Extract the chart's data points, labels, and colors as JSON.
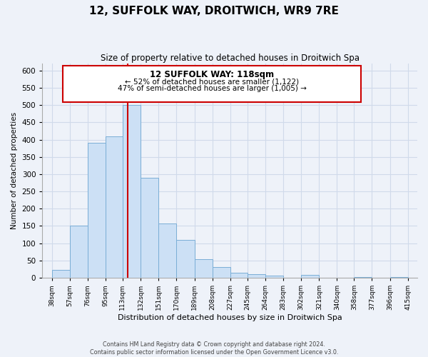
{
  "title": "12, SUFFOLK WAY, DROITWICH, WR9 7RE",
  "subtitle": "Size of property relative to detached houses in Droitwich Spa",
  "xlabel": "Distribution of detached houses by size in Droitwich Spa",
  "ylabel": "Number of detached properties",
  "footer_line1": "Contains HM Land Registry data © Crown copyright and database right 2024.",
  "footer_line2": "Contains public sector information licensed under the Open Government Licence v3.0.",
  "bar_edges": [
    38,
    57,
    76,
    95,
    113,
    132,
    151,
    170,
    189,
    208,
    227,
    245,
    264,
    283,
    302,
    321,
    340,
    358,
    377,
    396,
    415
  ],
  "bar_heights": [
    22,
    150,
    390,
    410,
    500,
    290,
    158,
    110,
    53,
    32,
    15,
    10,
    7,
    0,
    8,
    0,
    0,
    3,
    0,
    3
  ],
  "bar_color": "#cce0f5",
  "bar_edgecolor": "#7aaed6",
  "vline_color": "#cc0000",
  "annotation_title": "12 SUFFOLK WAY: 118sqm",
  "annotation_line1": "← 52% of detached houses are smaller (1,122)",
  "annotation_line2": "47% of semi-detached houses are larger (1,005) →",
  "annotation_box_color": "#ffffff",
  "annotation_box_edgecolor": "#cc0000",
  "ylim": [
    0,
    620
  ],
  "xlim": [
    28,
    425
  ],
  "yticks": [
    0,
    50,
    100,
    150,
    200,
    250,
    300,
    350,
    400,
    450,
    500,
    550,
    600
  ],
  "grid_color": "#d0daea",
  "background_color": "#eef2f9",
  "title_fontsize": 11,
  "subtitle_fontsize": 8.5,
  "xlabel_fontsize": 8,
  "ylabel_fontsize": 7.5,
  "xtick_fontsize": 6.5,
  "ytick_fontsize": 7.5,
  "footer_fontsize": 5.8
}
